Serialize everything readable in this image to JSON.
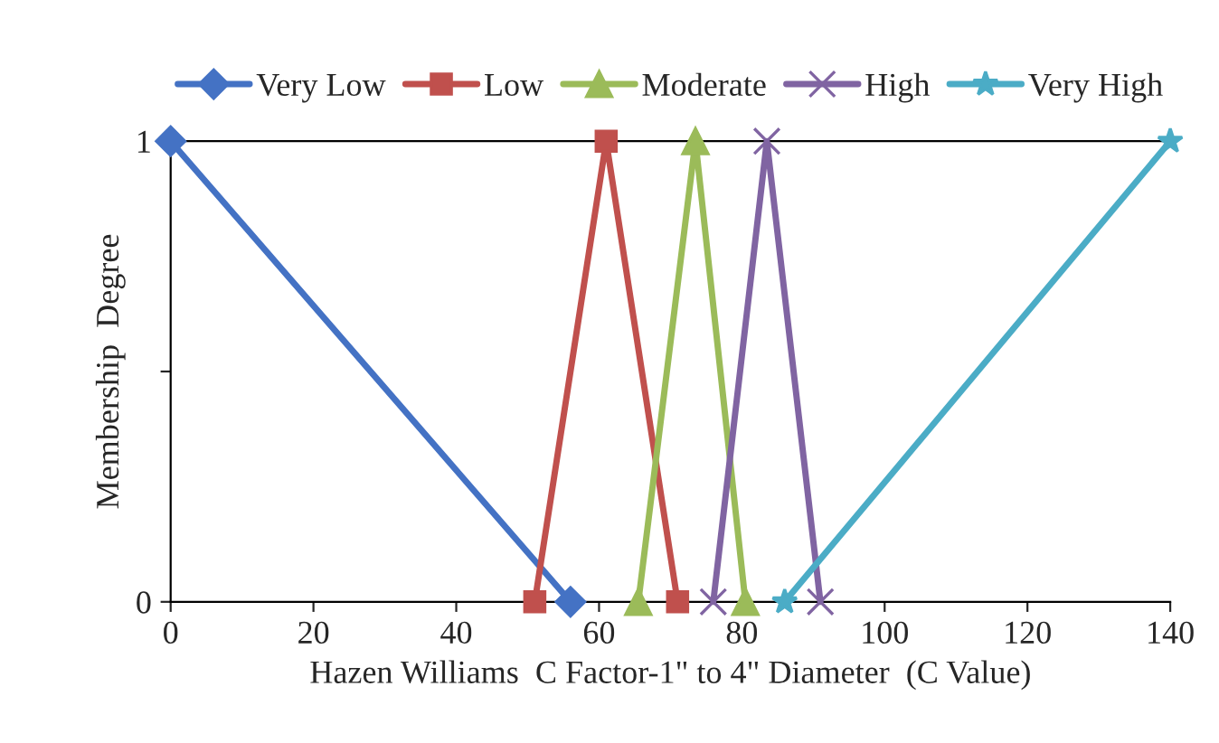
{
  "chart_data": {
    "type": "line",
    "xlabel": "Hazen Williams  C Factor-1\" to 4\" Diameter  (C Value)",
    "ylabel": "Membership  Degree",
    "xlim": [
      0,
      140
    ],
    "xticks": [
      0,
      20,
      40,
      60,
      80,
      100,
      120,
      140
    ],
    "ylim": [
      0,
      1
    ],
    "yticks": [
      0,
      {
        "value": 0.5,
        "label": null
      },
      1
    ],
    "grid": false,
    "legend": "top",
    "series": [
      {
        "name": "Very Low",
        "color": "#4472c4",
        "marker": "diamond",
        "x": [
          0,
          56
        ],
        "values": [
          1,
          0
        ]
      },
      {
        "name": "Low",
        "color": "#c0504d",
        "marker": "square",
        "x": [
          51,
          61,
          71
        ],
        "values": [
          0,
          1,
          0
        ]
      },
      {
        "name": "Moderate",
        "color": "#9bbb59",
        "marker": "triangle",
        "x": [
          65.5,
          73.5,
          80.5
        ],
        "values": [
          0,
          1,
          0
        ]
      },
      {
        "name": "High",
        "color": "#8064a2",
        "marker": "cross",
        "x": [
          76,
          83.5,
          91
        ],
        "values": [
          0,
          1,
          0
        ]
      },
      {
        "name": "Very High",
        "color": "#4bacc6",
        "marker": "star",
        "x": [
          86,
          140
        ],
        "values": [
          0,
          1
        ]
      }
    ]
  }
}
